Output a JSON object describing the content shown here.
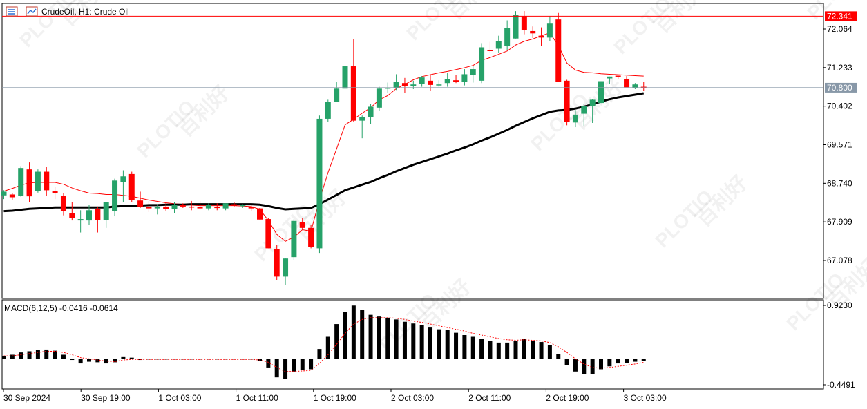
{
  "header": {
    "symbol_title": "CrudeOil, H1:  Crude Oil",
    "icons": [
      "symbol-list-icon",
      "chart-window-icon"
    ]
  },
  "macd": {
    "label": "MACD(6,12,5) -0.0416 -0.0614"
  },
  "price_labels": {
    "high_line": "72.341",
    "current": "70.800"
  },
  "price_axis": [
    "72.064",
    "71.233",
    "70.402",
    "69.571",
    "68.740",
    "67.909",
    "67.078"
  ],
  "macd_axis": [
    "0.9230",
    "-0.4491"
  ],
  "time_axis": [
    "30 Sep 2024",
    "30 Sep 19:00",
    "1 Oct 03:00",
    "1 Oct 11:00",
    "1 Oct 19:00",
    "2 Oct 03:00",
    "2 Oct 11:00",
    "2 Oct 19:00",
    "3 Oct 03:00"
  ],
  "watermark": {
    "text": "PLOTIO",
    "text2": "百利好"
  },
  "colors": {
    "bull": "#26a269",
    "bear": "#ff0000",
    "ma_slow": "#000000",
    "ma_fast": "#ff0000",
    "high_line": "#ff0000",
    "current_line": "#8898a8",
    "high_label_bg": "#ff0000",
    "current_label_bg": "#8898a8",
    "macd_hist": "#000000",
    "macd_signal": "#ff0000"
  },
  "chart_data": [
    {
      "type": "candlestick",
      "title": "CrudeOil, H1:  Crude Oil",
      "timeframe": "H1",
      "ylim": [
        66.5,
        72.6
      ],
      "high_line": 72.341,
      "current_price": 70.8,
      "x_ticks": [
        "30 Sep 2024",
        "30 Sep 19:00",
        "1 Oct 03:00",
        "1 Oct 11:00",
        "1 Oct 19:00",
        "2 Oct 03:00",
        "2 Oct 11:00",
        "2 Oct 19:00",
        "3 Oct 03:00"
      ],
      "y_ticks": [
        72.064,
        71.233,
        70.402,
        69.571,
        68.74,
        67.909,
        67.078
      ],
      "candles": [
        [
          68.48,
          68.59,
          68.4,
          68.56
        ],
        [
          68.5,
          68.53,
          68.39,
          68.44
        ],
        [
          68.47,
          69.11,
          68.45,
          69.07
        ],
        [
          69.04,
          69.19,
          68.33,
          68.46
        ],
        [
          68.57,
          69.04,
          68.54,
          68.99
        ],
        [
          68.99,
          69.09,
          68.47,
          68.59
        ],
        [
          68.57,
          68.66,
          68.4,
          68.53
        ],
        [
          68.47,
          68.53,
          68.05,
          68.14
        ],
        [
          68.09,
          68.33,
          67.94,
          68.0
        ],
        [
          67.94,
          68.16,
          67.68,
          67.97
        ],
        [
          67.94,
          68.27,
          67.85,
          68.16
        ],
        [
          68.18,
          68.24,
          67.68,
          67.95
        ],
        [
          67.95,
          68.34,
          67.78,
          68.34
        ],
        [
          68.14,
          68.84,
          68.03,
          68.8
        ],
        [
          68.77,
          69.02,
          68.33,
          68.89
        ],
        [
          68.94,
          68.99,
          68.33,
          68.38
        ],
        [
          68.37,
          68.56,
          68.21,
          68.24
        ],
        [
          68.24,
          68.36,
          68.12,
          68.2
        ],
        [
          68.2,
          68.29,
          68.07,
          68.24
        ],
        [
          68.24,
          68.33,
          68.15,
          68.18
        ],
        [
          68.19,
          68.34,
          68.1,
          68.27
        ],
        [
          68.27,
          68.31,
          68.21,
          68.24
        ],
        [
          68.24,
          68.36,
          68.16,
          68.23
        ],
        [
          68.23,
          68.36,
          68.17,
          68.2
        ],
        [
          68.2,
          68.31,
          68.16,
          68.27
        ],
        [
          68.23,
          68.31,
          68.16,
          68.21
        ],
        [
          68.2,
          68.31,
          68.16,
          68.31
        ],
        [
          68.29,
          68.34,
          68.24,
          68.26
        ],
        [
          68.26,
          68.29,
          68.21,
          68.27
        ],
        [
          68.24,
          68.27,
          68.15,
          68.2
        ],
        [
          68.2,
          68.21,
          67.96,
          67.96
        ],
        [
          67.97,
          68.0,
          67.34,
          67.34
        ],
        [
          67.32,
          67.41,
          66.65,
          66.73
        ],
        [
          66.73,
          67.13,
          66.55,
          67.12
        ],
        [
          67.15,
          67.97,
          67.08,
          67.93
        ],
        [
          67.9,
          67.99,
          67.74,
          67.78
        ],
        [
          67.78,
          67.85,
          67.34,
          67.37
        ],
        [
          67.34,
          70.2,
          67.24,
          70.13
        ],
        [
          70.13,
          70.54,
          70.07,
          70.49
        ],
        [
          70.49,
          70.92,
          70.49,
          70.78
        ],
        [
          70.78,
          71.3,
          70.71,
          71.26
        ],
        [
          71.26,
          71.85,
          70.07,
          70.09
        ],
        [
          70.09,
          70.2,
          69.71,
          70.16
        ],
        [
          70.16,
          70.45,
          70.02,
          70.39
        ],
        [
          70.37,
          70.82,
          70.3,
          70.78
        ],
        [
          70.78,
          70.91,
          70.69,
          70.8
        ],
        [
          70.8,
          71.09,
          70.75,
          70.92
        ],
        [
          70.9,
          71.01,
          70.69,
          70.84
        ],
        [
          70.84,
          70.95,
          70.77,
          70.87
        ],
        [
          70.88,
          71.05,
          70.82,
          71.02
        ],
        [
          70.95,
          71.09,
          70.73,
          70.86
        ],
        [
          70.86,
          70.96,
          70.82,
          70.87
        ],
        [
          70.9,
          71.12,
          70.82,
          70.98
        ],
        [
          70.96,
          71.07,
          70.9,
          70.93
        ],
        [
          70.93,
          71.2,
          70.85,
          71.09
        ],
        [
          71.07,
          71.26,
          70.91,
          71.2
        ],
        [
          70.95,
          71.76,
          70.9,
          71.67
        ],
        [
          71.61,
          71.79,
          71.55,
          71.59
        ],
        [
          71.64,
          71.92,
          71.55,
          71.8
        ],
        [
          71.7,
          72.25,
          71.61,
          72.08
        ],
        [
          71.86,
          72.45,
          71.86,
          72.37
        ],
        [
          72.34,
          72.45,
          71.95,
          72.04
        ],
        [
          72.02,
          72.12,
          71.87,
          71.97
        ],
        [
          71.92,
          72.1,
          71.7,
          71.88
        ],
        [
          71.88,
          72.34,
          71.81,
          72.18
        ],
        [
          72.27,
          72.41,
          70.92,
          70.92
        ],
        [
          70.95,
          70.97,
          69.99,
          70.06
        ],
        [
          70.05,
          70.32,
          69.95,
          70.22
        ],
        [
          70.24,
          70.45,
          69.97,
          70.4
        ],
        [
          70.41,
          70.55,
          70.04,
          70.54
        ],
        [
          70.47,
          70.94,
          70.47,
          70.94
        ],
        [
          71.0,
          71.04,
          70.88,
          71.04
        ],
        [
          71.06,
          71.06,
          70.99,
          71.04
        ],
        [
          70.98,
          71.05,
          70.82,
          70.81
        ],
        [
          70.8,
          70.9,
          70.77,
          70.87
        ],
        [
          70.82,
          70.92,
          70.73,
          70.8
        ]
      ],
      "series": [
        {
          "name": "",
          "style": "thin-red",
          "values": [
            68.57,
            68.63,
            68.7,
            68.75,
            68.76,
            68.76,
            68.76,
            68.72,
            68.64,
            68.58,
            68.53,
            68.52,
            68.5,
            68.5,
            68.48,
            68.46,
            68.42,
            68.38,
            68.35,
            68.32,
            68.3,
            68.29,
            68.27,
            68.26,
            68.26,
            68.26,
            68.26,
            68.26,
            68.25,
            68.24,
            68.18,
            67.94,
            67.64,
            67.49,
            67.58,
            67.74,
            67.71,
            68.38,
            68.97,
            69.48,
            70.0,
            70.12,
            70.25,
            70.37,
            70.54,
            70.63,
            70.78,
            70.87,
            70.97,
            71.04,
            71.08,
            71.12,
            71.15,
            71.19,
            71.23,
            71.28,
            71.39,
            71.45,
            71.52,
            71.59,
            71.72,
            71.8,
            71.85,
            71.92,
            71.98,
            71.71,
            71.33,
            71.18,
            71.13,
            71.12,
            71.1,
            71.09,
            71.08,
            71.07,
            71.06,
            71.05
          ]
        },
        {
          "name": "",
          "style": "thick-black",
          "values": [
            68.14,
            68.15,
            68.17,
            68.19,
            68.2,
            68.21,
            68.22,
            68.22,
            68.22,
            68.22,
            68.22,
            68.22,
            68.22,
            68.24,
            68.25,
            68.26,
            68.26,
            68.27,
            68.27,
            68.28,
            68.28,
            68.28,
            68.29,
            68.29,
            68.29,
            68.29,
            68.29,
            68.29,
            68.29,
            68.29,
            68.28,
            68.25,
            68.21,
            68.18,
            68.19,
            68.2,
            68.21,
            68.29,
            68.39,
            68.49,
            68.59,
            68.65,
            68.71,
            68.77,
            68.85,
            68.92,
            69.0,
            69.07,
            69.14,
            69.2,
            69.26,
            69.32,
            69.38,
            69.45,
            69.51,
            69.58,
            69.66,
            69.73,
            69.81,
            69.89,
            69.98,
            70.06,
            70.14,
            70.21,
            70.28,
            70.31,
            70.32,
            70.35,
            70.39,
            70.44,
            70.5,
            70.55,
            70.59,
            70.62,
            70.65,
            70.68
          ]
        }
      ]
    },
    {
      "type": "bar",
      "title": "MACD(6,12,5) -0.0416 -0.0614",
      "ylim": [
        -0.6,
        1.02
      ],
      "y_ticks": [
        0.923,
        -0.4491
      ],
      "series": [
        {
          "name": "",
          "style": "histogram",
          "values": [
            0.05,
            0.07,
            0.11,
            0.13,
            0.15,
            0.16,
            0.14,
            0.07,
            -0.02,
            -0.08,
            -0.05,
            -0.06,
            -0.08,
            -0.06,
            0.03,
            0.02,
            -0.02,
            -0.01,
            -0.01,
            -0.01,
            -0.01,
            -0.01,
            -0.01,
            -0.01,
            -0.01,
            -0.01,
            -0.01,
            -0.01,
            -0.01,
            -0.01,
            -0.04,
            -0.15,
            -0.32,
            -0.35,
            -0.22,
            -0.19,
            -0.18,
            0.17,
            0.38,
            0.6,
            0.81,
            0.92,
            0.85,
            0.76,
            0.73,
            0.71,
            0.68,
            0.64,
            0.61,
            0.58,
            0.54,
            0.51,
            0.5,
            0.45,
            0.41,
            0.38,
            0.35,
            0.31,
            0.28,
            0.28,
            0.31,
            0.34,
            0.31,
            0.29,
            0.24,
            0.08,
            -0.11,
            -0.22,
            -0.27,
            -0.27,
            -0.18,
            -0.13,
            -0.08,
            -0.07,
            -0.05,
            -0.04
          ]
        },
        {
          "name": "",
          "style": "dotted-red",
          "values": [
            0.05,
            0.05,
            0.07,
            0.09,
            0.11,
            0.13,
            0.13,
            0.11,
            0.07,
            0.02,
            -0.0,
            -0.02,
            -0.04,
            -0.05,
            -0.02,
            -0.01,
            -0.01,
            -0.01,
            -0.01,
            -0.01,
            -0.01,
            -0.01,
            -0.01,
            -0.01,
            -0.01,
            -0.01,
            -0.01,
            -0.01,
            -0.01,
            -0.01,
            -0.02,
            -0.06,
            -0.15,
            -0.22,
            -0.22,
            -0.21,
            -0.2,
            -0.08,
            0.07,
            0.25,
            0.44,
            0.6,
            0.68,
            0.71,
            0.71,
            0.71,
            0.7,
            0.68,
            0.65,
            0.63,
            0.6,
            0.57,
            0.54,
            0.51,
            0.48,
            0.44,
            0.41,
            0.38,
            0.35,
            0.33,
            0.32,
            0.33,
            0.32,
            0.31,
            0.28,
            0.21,
            0.11,
            0.0,
            -0.09,
            -0.15,
            -0.16,
            -0.15,
            -0.13,
            -0.11,
            -0.09,
            -0.06
          ]
        }
      ]
    }
  ]
}
